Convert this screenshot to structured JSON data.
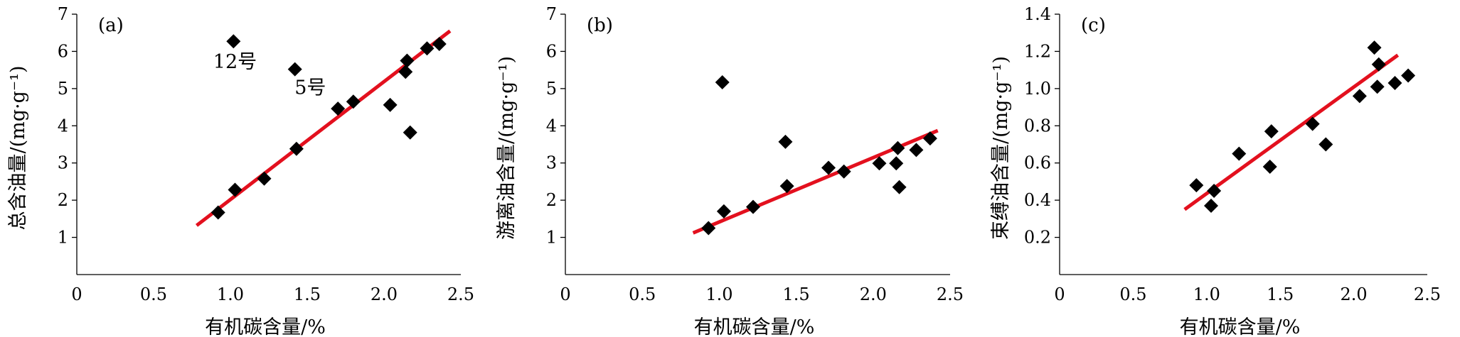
{
  "chart_data": [
    {
      "type": "scatter",
      "panel_label": "(a)",
      "xlabel": "有机碳含量/%",
      "ylabel": "总含油量/(mg·g⁻¹)",
      "xlim": [
        0,
        2.5
      ],
      "ylim": [
        0,
        7
      ],
      "xticks": [
        0,
        0.5,
        1.0,
        1.5,
        2.0,
        2.5
      ],
      "xtick_labels": [
        "0",
        "0.5",
        "1.0",
        "1.5",
        "2.0",
        "2.5"
      ],
      "yticks": [
        1,
        2,
        3,
        4,
        5,
        6,
        7
      ],
      "ytick_labels": [
        "1",
        "2",
        "3",
        "4",
        "5",
        "6",
        "7"
      ],
      "points": [
        {
          "x": 0.92,
          "y": 1.67
        },
        {
          "x": 1.03,
          "y": 2.28
        },
        {
          "x": 1.22,
          "y": 2.58
        },
        {
          "x": 1.43,
          "y": 3.38
        },
        {
          "x": 1.7,
          "y": 4.46
        },
        {
          "x": 1.8,
          "y": 4.65
        },
        {
          "x": 2.04,
          "y": 4.56
        },
        {
          "x": 2.14,
          "y": 5.45
        },
        {
          "x": 2.15,
          "y": 5.75
        },
        {
          "x": 2.17,
          "y": 3.82
        },
        {
          "x": 2.28,
          "y": 6.08
        },
        {
          "x": 2.36,
          "y": 6.2
        },
        {
          "x": 1.02,
          "y": 6.27
        },
        {
          "x": 1.42,
          "y": 5.52
        }
      ],
      "annotations": [
        {
          "text": "12号",
          "x": 1.03,
          "y": 5.72
        },
        {
          "text": "5号",
          "x": 1.52,
          "y": 5.03
        }
      ],
      "trendline": {
        "x": [
          0.78,
          2.43
        ],
        "y": [
          1.32,
          6.55
        ]
      }
    },
    {
      "type": "scatter",
      "panel_label": "(b)",
      "xlabel": "有机碳含量/%",
      "ylabel": "游离油含量/(mg·g⁻¹)",
      "xlim": [
        0,
        2.5
      ],
      "ylim": [
        0,
        7
      ],
      "xticks": [
        0,
        0.5,
        1.0,
        1.5,
        2.0,
        2.5
      ],
      "xtick_labels": [
        "0",
        "0.5",
        "1.0",
        "1.5",
        "2.0",
        "2.5"
      ],
      "yticks": [
        1,
        2,
        3,
        4,
        5,
        6,
        7
      ],
      "ytick_labels": [
        "1",
        "2",
        "3",
        "4",
        "5",
        "6",
        "7"
      ],
      "points": [
        {
          "x": 0.93,
          "y": 1.25
        },
        {
          "x": 1.03,
          "y": 1.7
        },
        {
          "x": 1.02,
          "y": 5.17
        },
        {
          "x": 1.22,
          "y": 1.82
        },
        {
          "x": 1.43,
          "y": 3.57
        },
        {
          "x": 1.44,
          "y": 2.38
        },
        {
          "x": 1.71,
          "y": 2.87
        },
        {
          "x": 1.81,
          "y": 2.77
        },
        {
          "x": 2.04,
          "y": 2.99
        },
        {
          "x": 2.15,
          "y": 2.99
        },
        {
          "x": 2.16,
          "y": 3.4
        },
        {
          "x": 2.17,
          "y": 2.35
        },
        {
          "x": 2.28,
          "y": 3.35
        },
        {
          "x": 2.37,
          "y": 3.66
        }
      ],
      "trendline": {
        "x": [
          0.83,
          2.42
        ],
        "y": [
          1.12,
          3.87
        ]
      }
    },
    {
      "type": "scatter",
      "panel_label": "(c)",
      "xlabel": "有机碳含量/%",
      "ylabel": "束缚油含量/(mg·g⁻¹)",
      "xlim": [
        0,
        2.5
      ],
      "ylim": [
        0,
        1.4
      ],
      "xticks": [
        0,
        0.5,
        1.0,
        1.5,
        2.0,
        2.5
      ],
      "xtick_labels": [
        "0",
        "0.5",
        "1.0",
        "1.5",
        "2.0",
        "2.5"
      ],
      "yticks": [
        0.2,
        0.4,
        0.6,
        0.8,
        1.0,
        1.2,
        1.4
      ],
      "ytick_labels": [
        "0.2",
        "0.4",
        "0.6",
        "0.8",
        "1.0",
        "1.2",
        "1.4"
      ],
      "points": [
        {
          "x": 0.93,
          "y": 0.48
        },
        {
          "x": 1.03,
          "y": 0.37
        },
        {
          "x": 1.05,
          "y": 0.45
        },
        {
          "x": 1.22,
          "y": 0.65
        },
        {
          "x": 1.43,
          "y": 0.58
        },
        {
          "x": 1.44,
          "y": 0.77
        },
        {
          "x": 1.72,
          "y": 0.81
        },
        {
          "x": 1.81,
          "y": 0.7
        },
        {
          "x": 2.04,
          "y": 0.96
        },
        {
          "x": 2.14,
          "y": 1.22
        },
        {
          "x": 2.16,
          "y": 1.01
        },
        {
          "x": 2.17,
          "y": 1.13
        },
        {
          "x": 2.28,
          "y": 1.03
        },
        {
          "x": 2.37,
          "y": 1.07
        }
      ],
      "trendline": {
        "x": [
          0.85,
          2.3
        ],
        "y": [
          0.35,
          1.18
        ]
      }
    }
  ]
}
